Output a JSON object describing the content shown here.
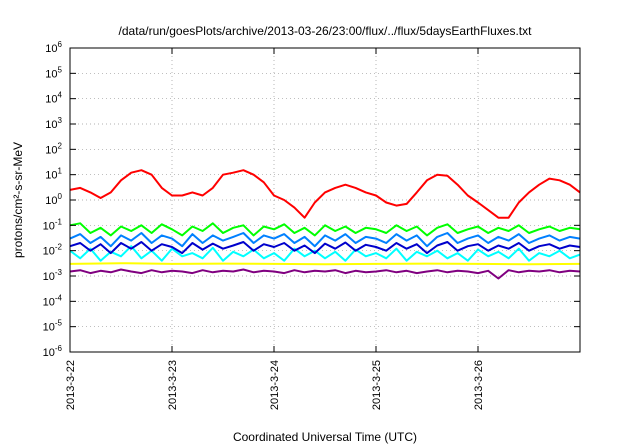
{
  "chart_data": {
    "type": "line",
    "title": "/data/run/goesPlots/archive/2013-03-26/23:00/flux/../flux/5daysEarthFluxes.txt",
    "xlabel": "Coordinated Universal Time (UTC)",
    "ylabel": "protons/cm²-s-sr-MeV",
    "yscale": "log",
    "ylim": [
      1e-06,
      1000000.0
    ],
    "xlim": [
      0,
      5
    ],
    "grid": true,
    "x_ticks": [
      "2013-3-22",
      "2013-3-23",
      "2013-3-24",
      "2013-3-25",
      "2013-3-26"
    ],
    "y_ticks": [
      {
        "base": "10",
        "exp": "6"
      },
      {
        "base": "10",
        "exp": "5"
      },
      {
        "base": "10",
        "exp": "4"
      },
      {
        "base": "10",
        "exp": "3"
      },
      {
        "base": "10",
        "exp": "2"
      },
      {
        "base": "10",
        "exp": "1"
      },
      {
        "base": "10",
        "exp": "0"
      },
      {
        "base": "10",
        "exp": "-1"
      },
      {
        "base": "10",
        "exp": "-2"
      },
      {
        "base": "10",
        "exp": "-3"
      },
      {
        "base": "10",
        "exp": "-4"
      },
      {
        "base": "10",
        "exp": "-5"
      },
      {
        "base": "10",
        "exp": "-6"
      }
    ],
    "series": [
      {
        "color": "#ff0000",
        "x": [
          0,
          0.1,
          0.2,
          0.3,
          0.4,
          0.5,
          0.6,
          0.7,
          0.8,
          0.9,
          1.0,
          1.1,
          1.2,
          1.3,
          1.4,
          1.5,
          1.6,
          1.7,
          1.8,
          1.9,
          2.0,
          2.1,
          2.2,
          2.3,
          2.4,
          2.5,
          2.6,
          2.7,
          2.8,
          2.9,
          3.0,
          3.1,
          3.2,
          3.3,
          3.4,
          3.5,
          3.6,
          3.7,
          3.8,
          3.9,
          4.0,
          4.1,
          4.2,
          4.3,
          4.4,
          4.5,
          4.6,
          4.7,
          4.8,
          4.9,
          5.0
        ],
        "values": [
          2.5,
          3,
          2,
          1.2,
          2,
          6,
          12,
          15,
          10,
          3,
          1.5,
          1.5,
          2,
          1.5,
          3,
          10,
          12,
          15,
          10,
          5,
          1.5,
          1,
          0.5,
          0.2,
          0.8,
          2,
          3,
          4,
          3,
          2,
          1.5,
          0.8,
          0.6,
          0.7,
          2,
          6,
          10,
          9,
          4,
          1.5,
          0.8,
          0.4,
          0.2,
          0.2,
          0.8,
          2,
          4,
          7,
          6,
          4,
          2
        ]
      },
      {
        "color": "#00ff00",
        "x": [
          0,
          0.1,
          0.2,
          0.3,
          0.4,
          0.5,
          0.6,
          0.7,
          0.8,
          0.9,
          1.0,
          1.1,
          1.2,
          1.3,
          1.4,
          1.5,
          1.6,
          1.7,
          1.8,
          1.9,
          2.0,
          2.1,
          2.2,
          2.3,
          2.4,
          2.5,
          2.6,
          2.7,
          2.8,
          2.9,
          3.0,
          3.1,
          3.2,
          3.3,
          3.4,
          3.5,
          3.6,
          3.7,
          3.8,
          3.9,
          4.0,
          4.1,
          4.2,
          4.3,
          4.4,
          4.5,
          4.6,
          4.7,
          4.8,
          4.9,
          5.0
        ],
        "values": [
          0.1,
          0.12,
          0.05,
          0.08,
          0.04,
          0.09,
          0.06,
          0.1,
          0.05,
          0.11,
          0.07,
          0.04,
          0.09,
          0.06,
          0.12,
          0.05,
          0.08,
          0.1,
          0.04,
          0.09,
          0.07,
          0.11,
          0.05,
          0.08,
          0.04,
          0.1,
          0.06,
          0.09,
          0.05,
          0.08,
          0.07,
          0.05,
          0.1,
          0.06,
          0.09,
          0.04,
          0.08,
          0.11,
          0.05,
          0.07,
          0.09,
          0.05,
          0.08,
          0.06,
          0.1,
          0.05,
          0.07,
          0.09,
          0.06,
          0.08,
          0.07
        ]
      },
      {
        "color": "#00ffff",
        "x": [
          0,
          0.1,
          0.2,
          0.3,
          0.4,
          0.5,
          0.6,
          0.7,
          0.8,
          0.9,
          1.0,
          1.1,
          1.2,
          1.3,
          1.4,
          1.5,
          1.6,
          1.7,
          1.8,
          1.9,
          2.0,
          2.1,
          2.2,
          2.3,
          2.4,
          2.5,
          2.6,
          2.7,
          2.8,
          2.9,
          3.0,
          3.1,
          3.2,
          3.3,
          3.4,
          3.5,
          3.6,
          3.7,
          3.8,
          3.9,
          4.0,
          4.1,
          4.2,
          4.3,
          4.4,
          4.5,
          4.6,
          4.7,
          4.8,
          4.9,
          5.0
        ],
        "values": [
          0.01,
          0.005,
          0.012,
          0.004,
          0.009,
          0.006,
          0.015,
          0.005,
          0.01,
          0.004,
          0.012,
          0.006,
          0.008,
          0.005,
          0.013,
          0.004,
          0.009,
          0.006,
          0.011,
          0.005,
          0.008,
          0.004,
          0.012,
          0.006,
          0.01,
          0.005,
          0.009,
          0.004,
          0.011,
          0.006,
          0.008,
          0.005,
          0.012,
          0.004,
          0.009,
          0.006,
          0.01,
          0.005,
          0.008,
          0.004,
          0.011,
          0.006,
          0.009,
          0.005,
          0.012,
          0.004,
          0.008,
          0.006,
          0.01,
          0.005,
          0.007
        ]
      },
      {
        "color": "#0080ff",
        "x": [
          0,
          0.1,
          0.2,
          0.3,
          0.4,
          0.5,
          0.6,
          0.7,
          0.8,
          0.9,
          1.0,
          1.1,
          1.2,
          1.3,
          1.4,
          1.5,
          1.6,
          1.7,
          1.8,
          1.9,
          2.0,
          2.1,
          2.2,
          2.3,
          2.4,
          2.5,
          2.6,
          2.7,
          2.8,
          2.9,
          3.0,
          3.1,
          3.2,
          3.3,
          3.4,
          3.5,
          3.6,
          3.7,
          3.8,
          3.9,
          4.0,
          4.1,
          4.2,
          4.3,
          4.4,
          4.5,
          4.6,
          4.7,
          4.8,
          4.9,
          5.0
        ],
        "values": [
          0.03,
          0.045,
          0.02,
          0.035,
          0.015,
          0.04,
          0.025,
          0.05,
          0.02,
          0.04,
          0.03,
          0.015,
          0.045,
          0.02,
          0.04,
          0.025,
          0.035,
          0.05,
          0.02,
          0.04,
          0.03,
          0.045,
          0.02,
          0.035,
          0.015,
          0.04,
          0.025,
          0.045,
          0.02,
          0.035,
          0.03,
          0.02,
          0.045,
          0.025,
          0.04,
          0.015,
          0.035,
          0.05,
          0.02,
          0.03,
          0.04,
          0.02,
          0.035,
          0.025,
          0.045,
          0.02,
          0.03,
          0.04,
          0.025,
          0.035,
          0.03
        ]
      },
      {
        "color": "#0000cc",
        "x": [
          0,
          0.1,
          0.2,
          0.3,
          0.4,
          0.5,
          0.6,
          0.7,
          0.8,
          0.9,
          1.0,
          1.1,
          1.2,
          1.3,
          1.4,
          1.5,
          1.6,
          1.7,
          1.8,
          1.9,
          2.0,
          2.1,
          2.2,
          2.3,
          2.4,
          2.5,
          2.6,
          2.7,
          2.8,
          2.9,
          3.0,
          3.1,
          3.2,
          3.3,
          3.4,
          3.5,
          3.6,
          3.7,
          3.8,
          3.9,
          4.0,
          4.1,
          4.2,
          4.3,
          4.4,
          4.5,
          4.6,
          4.7,
          4.8,
          4.9,
          5.0
        ],
        "values": [
          0.015,
          0.02,
          0.01,
          0.018,
          0.008,
          0.02,
          0.012,
          0.022,
          0.01,
          0.018,
          0.014,
          0.008,
          0.02,
          0.011,
          0.019,
          0.012,
          0.016,
          0.022,
          0.01,
          0.018,
          0.014,
          0.02,
          0.01,
          0.016,
          0.008,
          0.019,
          0.012,
          0.021,
          0.01,
          0.017,
          0.014,
          0.01,
          0.02,
          0.012,
          0.018,
          0.008,
          0.016,
          0.022,
          0.01,
          0.015,
          0.018,
          0.01,
          0.016,
          0.012,
          0.02,
          0.01,
          0.015,
          0.018,
          0.012,
          0.016,
          0.014
        ]
      },
      {
        "color": "#ffff00",
        "x": [
          0,
          0.5,
          1.0,
          1.5,
          2.0,
          2.5,
          3.0,
          3.5,
          4.0,
          4.5,
          5.0
        ],
        "values": [
          0.003,
          0.0032,
          0.003,
          0.0031,
          0.003,
          0.0029,
          0.003,
          0.0031,
          0.003,
          0.0029,
          0.003
        ]
      },
      {
        "color": "#800080",
        "x": [
          0,
          0.1,
          0.2,
          0.3,
          0.4,
          0.5,
          0.6,
          0.7,
          0.8,
          0.9,
          1.0,
          1.1,
          1.2,
          1.3,
          1.4,
          1.5,
          1.6,
          1.7,
          1.8,
          1.9,
          2.0,
          2.1,
          2.2,
          2.3,
          2.4,
          2.5,
          2.6,
          2.7,
          2.8,
          2.9,
          3.0,
          3.1,
          3.2,
          3.3,
          3.4,
          3.5,
          3.6,
          3.7,
          3.8,
          3.9,
          4.0,
          4.1,
          4.2,
          4.3,
          4.4,
          4.5,
          4.6,
          4.7,
          4.8,
          4.9,
          5.0
        ],
        "values": [
          0.0015,
          0.0017,
          0.0013,
          0.0016,
          0.0014,
          0.0018,
          0.0015,
          0.0013,
          0.0017,
          0.0014,
          0.0016,
          0.0015,
          0.0013,
          0.0017,
          0.0014,
          0.0016,
          0.0015,
          0.0018,
          0.0014,
          0.0016,
          0.0015,
          0.0013,
          0.0017,
          0.0014,
          0.0016,
          0.0015,
          0.0017,
          0.0013,
          0.0016,
          0.0014,
          0.0015,
          0.0017,
          0.0014,
          0.0016,
          0.0013,
          0.0015,
          0.0017,
          0.0014,
          0.0016,
          0.0015,
          0.0013,
          0.0016,
          0.0008,
          0.0017,
          0.0014,
          0.0016,
          0.0015,
          0.0017,
          0.0014,
          0.0016,
          0.0015
        ]
      }
    ]
  }
}
